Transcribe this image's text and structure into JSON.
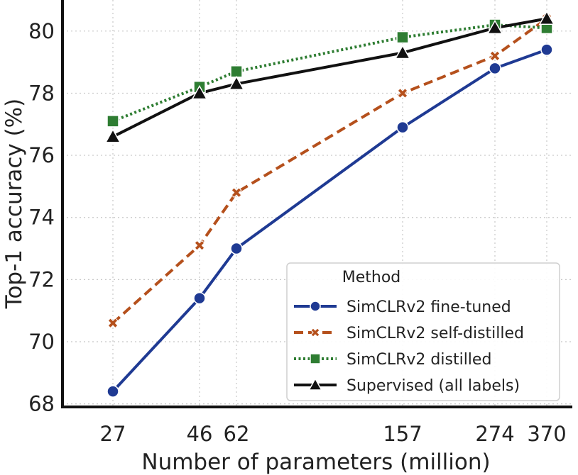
{
  "chart_data": {
    "type": "line",
    "xlabel": "Number of parameters (million)",
    "ylabel": "Top-1 accuracy (%)",
    "x_ticks": [
      "27",
      "46",
      "62",
      "157",
      "274",
      "370"
    ],
    "y_ticks": [
      "68",
      "70",
      "72",
      "74",
      "76",
      "78",
      "80"
    ],
    "ylim": [
      67.9,
      81.0
    ],
    "x_scale": "categorical-positions",
    "grid": true,
    "legend": {
      "title": "Method",
      "placement": "lower-right"
    },
    "series": [
      {
        "name": "SimCLRv2 fine-tuned",
        "color": "#1f3a93",
        "line_style": "solid",
        "marker": "circle",
        "points": [
          {
            "x_label": "27",
            "y": 68.4
          },
          {
            "x_label": "46",
            "y": 71.4
          },
          {
            "x_label": "62",
            "y": 73.0
          },
          {
            "x_label": "157",
            "y": 76.9
          },
          {
            "x_label": "274",
            "y": 78.8
          },
          {
            "x_label": "370",
            "y": 79.4
          }
        ]
      },
      {
        "name": "SimCLRv2 self-distilled",
        "color": "#b5501c",
        "line_style": "dashed",
        "marker": "x",
        "points": [
          {
            "x_label": "27",
            "y": 70.6
          },
          {
            "x_label": "46",
            "y": 73.1
          },
          {
            "x_label": "62",
            "y": 74.8
          },
          {
            "x_label": "157",
            "y": 78.0
          },
          {
            "x_label": "274",
            "y": 79.2
          },
          {
            "x_label": "370",
            "y": 80.4
          }
        ]
      },
      {
        "name": "SimCLRv2 distilled",
        "color": "#2e7d32",
        "line_style": "dotted",
        "marker": "square",
        "points": [
          {
            "x_label": "27",
            "y": 77.1
          },
          {
            "x_label": "46",
            "y": 78.2
          },
          {
            "x_label": "62",
            "y": 78.7
          },
          {
            "x_label": "157",
            "y": 79.8
          },
          {
            "x_label": "274",
            "y": 80.2
          },
          {
            "x_label": "370",
            "y": 80.1
          }
        ]
      },
      {
        "name": "Supervised (all labels)",
        "color": "#111111",
        "line_style": "solid",
        "marker": "triangle",
        "points": [
          {
            "x_label": "27",
            "y": 76.6
          },
          {
            "x_label": "46",
            "y": 78.0
          },
          {
            "x_label": "62",
            "y": 78.3
          },
          {
            "x_label": "157",
            "y": 79.3
          },
          {
            "x_label": "274",
            "y": 80.1
          },
          {
            "x_label": "370",
            "y": 80.4
          }
        ]
      }
    ]
  }
}
